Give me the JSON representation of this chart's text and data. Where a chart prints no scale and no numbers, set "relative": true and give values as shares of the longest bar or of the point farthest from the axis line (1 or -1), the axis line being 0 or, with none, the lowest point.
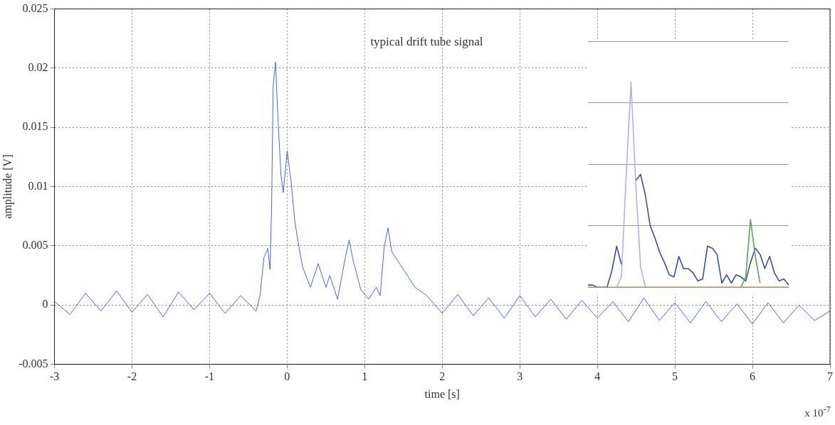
{
  "chart_data": [
    {
      "type": "line",
      "title": "typical drift tube signal",
      "xlabel": "time [s]",
      "ylabel": "amplitude [V]",
      "annotations": [
        "x 10$^{-7}$"
      ],
      "xlim": [
        -3,
        7
      ],
      "xticks": [
        -3,
        -2,
        -1,
        0,
        1,
        2,
        3,
        4,
        5,
        6,
        7
      ],
      "ylim": [
        -0.005,
        0.025
      ],
      "yticks": [
        -0.005,
        0,
        0.005,
        0.01,
        0.015,
        0.02,
        0.025
      ],
      "grid": true,
      "line_style": "solid",
      "marker": "none",
      "series": [
        {
          "color": "#2f55f0",
          "x": [
            -3,
            -2.8,
            -2.6,
            -2.4,
            -2.2,
            -2.0,
            -1.8,
            -1.6,
            -1.4,
            -1.2,
            -1.0,
            -0.8,
            -0.6,
            -0.4,
            -0.35,
            -0.3,
            -0.25,
            -0.22,
            -0.2,
            -0.18,
            -0.15,
            -0.12,
            -0.08,
            -0.05,
            0,
            0.05,
            0.1,
            0.15,
            0.2,
            0.3,
            0.4,
            0.5,
            0.55,
            0.65,
            0.75,
            0.8,
            0.85,
            0.95,
            1.05,
            1.15,
            1.2,
            1.25,
            1.3,
            1.35,
            1.45,
            1.55,
            1.65,
            1.8,
            2.0,
            2.2,
            2.4,
            2.6,
            2.8,
            3.0,
            3.2,
            3.4,
            3.6,
            3.8,
            4.0,
            4.2,
            4.4,
            4.6,
            4.8,
            5.0,
            5.2,
            5.4,
            5.6,
            5.8,
            6.0,
            6.2,
            6.4,
            6.6,
            6.8,
            7
          ],
          "values": [
            0.0003,
            -0.0008,
            0.001,
            -0.0005,
            0.0012,
            -0.0006,
            0.0009,
            -0.001,
            0.0011,
            -0.0004,
            0.001,
            -0.0007,
            0.0008,
            -0.0005,
            0.0008,
            0.004,
            0.0048,
            0.003,
            0.0085,
            0.0185,
            0.0205,
            0.016,
            0.011,
            0.0095,
            0.013,
            0.0105,
            0.007,
            0.005,
            0.0032,
            0.0015,
            0.0035,
            0.0015,
            0.0025,
            0.0005,
            0.004,
            0.0055,
            0.0038,
            0.0013,
            0.0005,
            0.0015,
            0.0008,
            0.0048,
            0.0065,
            0.0045,
            0.0035,
            0.0025,
            0.0015,
            0.0008,
            -0.0007,
            0.0009,
            -0.0009,
            0.0006,
            -0.0011,
            0.0008,
            -0.001,
            0.0005,
            -0.0012,
            0.0004,
            -0.0011,
            0.0003,
            -0.0014,
            0.0006,
            -0.0013,
            0.0002,
            -0.0015,
            0.0003,
            -0.0014,
            0.0001,
            -0.0016,
            0.0002,
            -0.0015,
            0,
            -0.0013,
            -0.0005
          ]
        }
      ]
    },
    {
      "type": "line",
      "relative": true,
      "grid": "y",
      "marker": "none",
      "categories": [
        null,
        null,
        null,
        null,
        null,
        null,
        null,
        null,
        null,
        null,
        null,
        null,
        null,
        null,
        null,
        null,
        null,
        null,
        null,
        null,
        null,
        null,
        null,
        null,
        null,
        null,
        null,
        null,
        null,
        null,
        null,
        null,
        null,
        null,
        null,
        null,
        null,
        null,
        null,
        null,
        null,
        null,
        null
      ],
      "series": [
        {
          "color": "#f08a3c",
          "values": [
            0,
            0,
            0,
            0,
            0,
            0,
            0,
            0,
            0,
            0,
            0,
            0,
            0,
            0,
            0,
            0,
            0,
            0,
            0,
            0,
            0,
            0,
            0,
            0,
            0,
            0,
            0,
            0,
            0,
            0,
            0,
            0,
            0,
            0,
            0,
            0,
            0,
            0,
            0,
            0,
            0,
            0,
            0
          ]
        },
        {
          "color": "#b3b1e0",
          "values": [
            null,
            null,
            null,
            null,
            null,
            null,
            0,
            0.05,
            0.55,
            1.0,
            0.5,
            0.1,
            0,
            null,
            null,
            null,
            null,
            null,
            null,
            null,
            null,
            null,
            null,
            null,
            null,
            null,
            null,
            null,
            null,
            null,
            null,
            null,
            null,
            null,
            null,
            null,
            null,
            null,
            null,
            null,
            null,
            null,
            null
          ]
        },
        {
          "color": "#5aa45a",
          "values": [
            null,
            null,
            null,
            null,
            null,
            null,
            null,
            null,
            null,
            null,
            null,
            null,
            null,
            null,
            null,
            null,
            null,
            null,
            null,
            null,
            null,
            null,
            null,
            null,
            null,
            null,
            null,
            null,
            null,
            null,
            null,
            null,
            0,
            0.05,
            0.33,
            0.15,
            0.02,
            null,
            null,
            null,
            null,
            null,
            null
          ]
        },
        {
          "color": "#3b4e9e",
          "values": [
            0.01,
            0.01,
            0,
            0,
            0,
            0.08,
            0.2,
            0.11,
            null,
            null,
            0.52,
            0.55,
            0.45,
            0.3,
            0.24,
            0.17,
            0.12,
            0.06,
            0.05,
            0.15,
            0.09,
            0.09,
            0.07,
            0.03,
            0.04,
            0.2,
            0.19,
            0.16,
            0.02,
            0.06,
            0.02,
            0.06,
            0.05,
            0.03,
            0.12,
            0.19,
            0.16,
            0.09,
            0.15,
            0.07,
            0.03,
            0.04,
            0.01
          ]
        }
      ]
    }
  ]
}
